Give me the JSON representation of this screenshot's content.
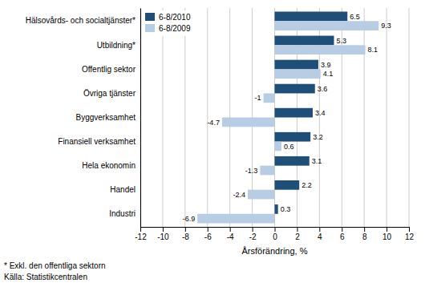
{
  "chart_data": {
    "type": "bar",
    "orientation": "horizontal",
    "categories": [
      "Industri",
      "Handel",
      "Hela ekonomin",
      "Finansiell verksamhet",
      "Byggverksamhet",
      "Övriga tjänster",
      "Offentlig sektor",
      "Utbildning*",
      "Hälsovårds- och socialtjänster*"
    ],
    "series": [
      {
        "name": "6-8/2010",
        "color": "#1f4e79",
        "values": [
          0.3,
          2.2,
          3.1,
          3.2,
          3.4,
          3.6,
          3.9,
          5.3,
          6.5
        ]
      },
      {
        "name": "6-8/2009",
        "color": "#b8cce4",
        "values": [
          -6.9,
          -2.4,
          -1.3,
          0.6,
          -4.7,
          -1.0,
          4.1,
          8.1,
          9.3
        ]
      }
    ],
    "xlabel": "Årsförändring, %",
    "xlim": [
      -12,
      12
    ],
    "xticks": [
      -12,
      -10,
      -8,
      -6,
      -4,
      -2,
      0,
      2,
      4,
      6,
      8,
      10,
      12
    ],
    "grid": true,
    "legend": "upper left",
    "data_labels": true,
    "annotations": [
      "* Exkl. den offentliga sektorn",
      "Källa: Statistikcentralen"
    ]
  }
}
